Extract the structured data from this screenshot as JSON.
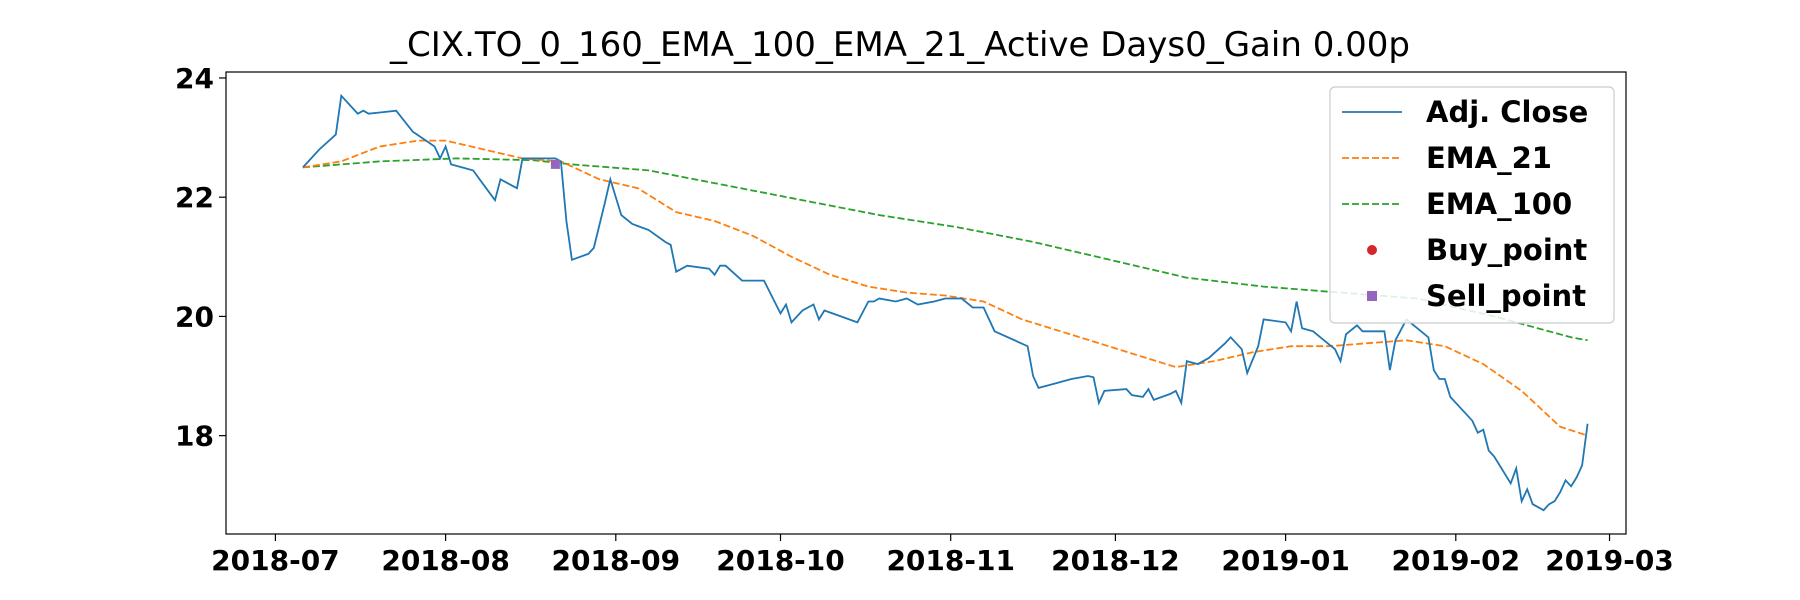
{
  "chart_data": {
    "type": "line",
    "title": "_CIX.TO_0_160_EMA_100_EMA_21_Active Days0_Gain   0.00p",
    "xlabel": "",
    "ylabel": "",
    "x_ticks": [
      "2018-07",
      "2018-08",
      "2018-09",
      "2018-10",
      "2018-11",
      "2018-12",
      "2019-01",
      "2019-02",
      "2019-03"
    ],
    "y_ticks": [
      18,
      20,
      22,
      24
    ],
    "xlim": [
      "2018-06-22",
      "2019-03-04"
    ],
    "ylim": [
      16.35,
      24.1
    ],
    "grid": false,
    "legend_position": "top-right",
    "series": [
      {
        "name": "Adj. Close",
        "style": "solid",
        "color": "#1f77b4",
        "points": [
          [
            "2018-07-06",
            22.5
          ],
          [
            "2018-07-09",
            22.8
          ],
          [
            "2018-07-12",
            23.05
          ],
          [
            "2018-07-13",
            23.7
          ],
          [
            "2018-07-16",
            23.4
          ],
          [
            "2018-07-17",
            23.45
          ],
          [
            "2018-07-18",
            23.4
          ],
          [
            "2018-07-23",
            23.45
          ],
          [
            "2018-07-26",
            23.1
          ],
          [
            "2018-07-30",
            22.85
          ],
          [
            "2018-07-31",
            22.65
          ],
          [
            "2018-08-01",
            22.85
          ],
          [
            "2018-08-02",
            22.55
          ],
          [
            "2018-08-06",
            22.45
          ],
          [
            "2018-08-08",
            22.2
          ],
          [
            "2018-08-10",
            21.95
          ],
          [
            "2018-08-11",
            22.3
          ],
          [
            "2018-08-13",
            22.2
          ],
          [
            "2018-08-14",
            22.15
          ],
          [
            "2018-08-15",
            22.65
          ],
          [
            "2018-08-21",
            22.65
          ],
          [
            "2018-08-22",
            22.6
          ],
          [
            "2018-08-23",
            21.6
          ],
          [
            "2018-08-24",
            20.95
          ],
          [
            "2018-08-27",
            21.05
          ],
          [
            "2018-08-28",
            21.15
          ],
          [
            "2018-08-30",
            21.9
          ],
          [
            "2018-08-31",
            22.3
          ],
          [
            "2018-09-02",
            21.7
          ],
          [
            "2018-09-04",
            21.55
          ],
          [
            "2018-09-07",
            21.45
          ],
          [
            "2018-09-10",
            21.25
          ],
          [
            "2018-09-11",
            21.2
          ],
          [
            "2018-09-12",
            20.75
          ],
          [
            "2018-09-14",
            20.85
          ],
          [
            "2018-09-18",
            20.8
          ],
          [
            "2018-09-19",
            20.7
          ],
          [
            "2018-09-20",
            20.85
          ],
          [
            "2018-09-21",
            20.85
          ],
          [
            "2018-09-24",
            20.6
          ],
          [
            "2018-09-28",
            20.6
          ],
          [
            "2018-10-01",
            20.05
          ],
          [
            "2018-10-02",
            20.2
          ],
          [
            "2018-10-03",
            19.9
          ],
          [
            "2018-10-05",
            20.1
          ],
          [
            "2018-10-07",
            20.2
          ],
          [
            "2018-10-08",
            19.95
          ],
          [
            "2018-10-09",
            20.1
          ],
          [
            "2018-10-12",
            20.0
          ],
          [
            "2018-10-15",
            19.9
          ],
          [
            "2018-10-17",
            20.25
          ],
          [
            "2018-10-18",
            20.25
          ],
          [
            "2018-10-19",
            20.3
          ],
          [
            "2018-10-22",
            20.25
          ],
          [
            "2018-10-24",
            20.3
          ],
          [
            "2018-10-26",
            20.2
          ],
          [
            "2018-10-29",
            20.25
          ],
          [
            "2018-10-31",
            20.3
          ],
          [
            "2018-11-03",
            20.3
          ],
          [
            "2018-11-05",
            20.15
          ],
          [
            "2018-11-07",
            20.15
          ],
          [
            "2018-11-09",
            19.75
          ],
          [
            "2018-11-15",
            19.5
          ],
          [
            "2018-11-16",
            19.0
          ],
          [
            "2018-11-17",
            18.8
          ],
          [
            "2018-11-19",
            18.85
          ],
          [
            "2018-11-21",
            18.9
          ],
          [
            "2018-11-23",
            18.95
          ],
          [
            "2018-11-26",
            19.0
          ],
          [
            "2018-11-27",
            18.98
          ],
          [
            "2018-11-28",
            18.55
          ],
          [
            "2018-11-29",
            18.75
          ],
          [
            "2018-12-03",
            18.78
          ],
          [
            "2018-12-04",
            18.68
          ],
          [
            "2018-12-06",
            18.65
          ],
          [
            "2018-12-07",
            18.78
          ],
          [
            "2018-12-08",
            18.6
          ],
          [
            "2018-12-11",
            18.7
          ],
          [
            "2018-12-12",
            18.75
          ],
          [
            "2018-12-13",
            18.55
          ],
          [
            "2018-12-14",
            19.25
          ],
          [
            "2018-12-16",
            19.2
          ],
          [
            "2018-12-18",
            19.3
          ],
          [
            "2018-12-21",
            19.55
          ],
          [
            "2018-12-22",
            19.65
          ],
          [
            "2018-12-24",
            19.45
          ],
          [
            "2018-12-25",
            19.05
          ],
          [
            "2018-12-27",
            19.5
          ],
          [
            "2018-12-28",
            19.95
          ],
          [
            "2019-01-01",
            19.9
          ],
          [
            "2019-01-02",
            19.75
          ],
          [
            "2019-01-03",
            20.25
          ],
          [
            "2019-01-04",
            19.8
          ],
          [
            "2019-01-06",
            19.75
          ],
          [
            "2019-01-08",
            19.6
          ],
          [
            "2019-01-10",
            19.45
          ],
          [
            "2019-01-11",
            19.25
          ],
          [
            "2019-01-12",
            19.7
          ],
          [
            "2019-01-14",
            19.85
          ],
          [
            "2019-01-15",
            19.75
          ],
          [
            "2019-01-19",
            19.75
          ],
          [
            "2019-01-20",
            19.1
          ],
          [
            "2019-01-21",
            19.6
          ],
          [
            "2019-01-23",
            19.95
          ],
          [
            "2019-01-25",
            19.8
          ],
          [
            "2019-01-27",
            19.65
          ],
          [
            "2019-01-28",
            19.1
          ],
          [
            "2019-01-29",
            18.95
          ],
          [
            "2019-01-30",
            18.95
          ],
          [
            "2019-01-31",
            18.65
          ],
          [
            "2019-02-02",
            18.45
          ],
          [
            "2019-02-04",
            18.25
          ],
          [
            "2019-02-05",
            18.05
          ],
          [
            "2019-02-06",
            18.1
          ],
          [
            "2019-02-07",
            17.75
          ],
          [
            "2019-02-08",
            17.65
          ],
          [
            "2019-02-11",
            17.2
          ],
          [
            "2019-02-12",
            17.45
          ],
          [
            "2019-02-13",
            16.9
          ],
          [
            "2019-02-14",
            17.1
          ],
          [
            "2019-02-15",
            16.85
          ],
          [
            "2019-02-17",
            16.75
          ],
          [
            "2019-02-18",
            16.85
          ],
          [
            "2019-02-19",
            16.9
          ],
          [
            "2019-02-20",
            17.05
          ],
          [
            "2019-02-21",
            17.25
          ],
          [
            "2019-02-22",
            17.15
          ],
          [
            "2019-02-23",
            17.3
          ],
          [
            "2019-02-24",
            17.5
          ],
          [
            "2019-02-25",
            18.2
          ]
        ]
      },
      {
        "name": "EMA_21",
        "style": "dashed",
        "color": "#ff7f0e",
        "points": [
          [
            "2018-07-06",
            22.5
          ],
          [
            "2018-07-13",
            22.6
          ],
          [
            "2018-07-20",
            22.85
          ],
          [
            "2018-07-27",
            22.95
          ],
          [
            "2018-08-01",
            22.95
          ],
          [
            "2018-08-08",
            22.8
          ],
          [
            "2018-08-15",
            22.65
          ],
          [
            "2018-08-22",
            22.6
          ],
          [
            "2018-08-29",
            22.3
          ],
          [
            "2018-09-05",
            22.15
          ],
          [
            "2018-09-12",
            21.75
          ],
          [
            "2018-09-19",
            21.6
          ],
          [
            "2018-09-26",
            21.35
          ],
          [
            "2018-10-03",
            21.0
          ],
          [
            "2018-10-10",
            20.7
          ],
          [
            "2018-10-17",
            20.5
          ],
          [
            "2018-10-24",
            20.4
          ],
          [
            "2018-10-31",
            20.35
          ],
          [
            "2018-11-07",
            20.25
          ],
          [
            "2018-11-14",
            19.95
          ],
          [
            "2018-11-21",
            19.75
          ],
          [
            "2018-11-28",
            19.55
          ],
          [
            "2018-12-05",
            19.35
          ],
          [
            "2018-12-12",
            19.15
          ],
          [
            "2018-12-19",
            19.25
          ],
          [
            "2018-12-26",
            19.4
          ],
          [
            "2019-01-02",
            19.5
          ],
          [
            "2019-01-09",
            19.5
          ],
          [
            "2019-01-16",
            19.55
          ],
          [
            "2019-01-23",
            19.6
          ],
          [
            "2019-01-30",
            19.5
          ],
          [
            "2019-02-06",
            19.2
          ],
          [
            "2019-02-13",
            18.75
          ],
          [
            "2019-02-20",
            18.15
          ],
          [
            "2019-02-25",
            18.0
          ]
        ]
      },
      {
        "name": "EMA_100",
        "style": "dashed",
        "color": "#2ca02c",
        "points": [
          [
            "2018-07-06",
            22.5
          ],
          [
            "2018-07-20",
            22.6
          ],
          [
            "2018-08-03",
            22.65
          ],
          [
            "2018-08-17",
            22.62
          ],
          [
            "2018-08-24",
            22.55
          ],
          [
            "2018-09-07",
            22.45
          ],
          [
            "2018-09-21",
            22.2
          ],
          [
            "2018-10-05",
            21.95
          ],
          [
            "2018-10-19",
            21.7
          ],
          [
            "2018-11-02",
            21.5
          ],
          [
            "2018-11-16",
            21.25
          ],
          [
            "2018-11-30",
            20.95
          ],
          [
            "2018-12-14",
            20.65
          ],
          [
            "2018-12-28",
            20.5
          ],
          [
            "2019-01-11",
            20.4
          ],
          [
            "2019-01-25",
            20.3
          ],
          [
            "2019-02-08",
            20.0
          ],
          [
            "2019-02-22",
            19.65
          ],
          [
            "2019-02-25",
            19.6
          ]
        ]
      },
      {
        "name": "Buy_point",
        "style": "marker-circle",
        "color": "#d62728",
        "points": []
      },
      {
        "name": "Sell_point",
        "style": "marker-square",
        "color": "#9467bd",
        "points": [
          [
            "2018-08-21",
            22.55
          ]
        ]
      }
    ]
  }
}
